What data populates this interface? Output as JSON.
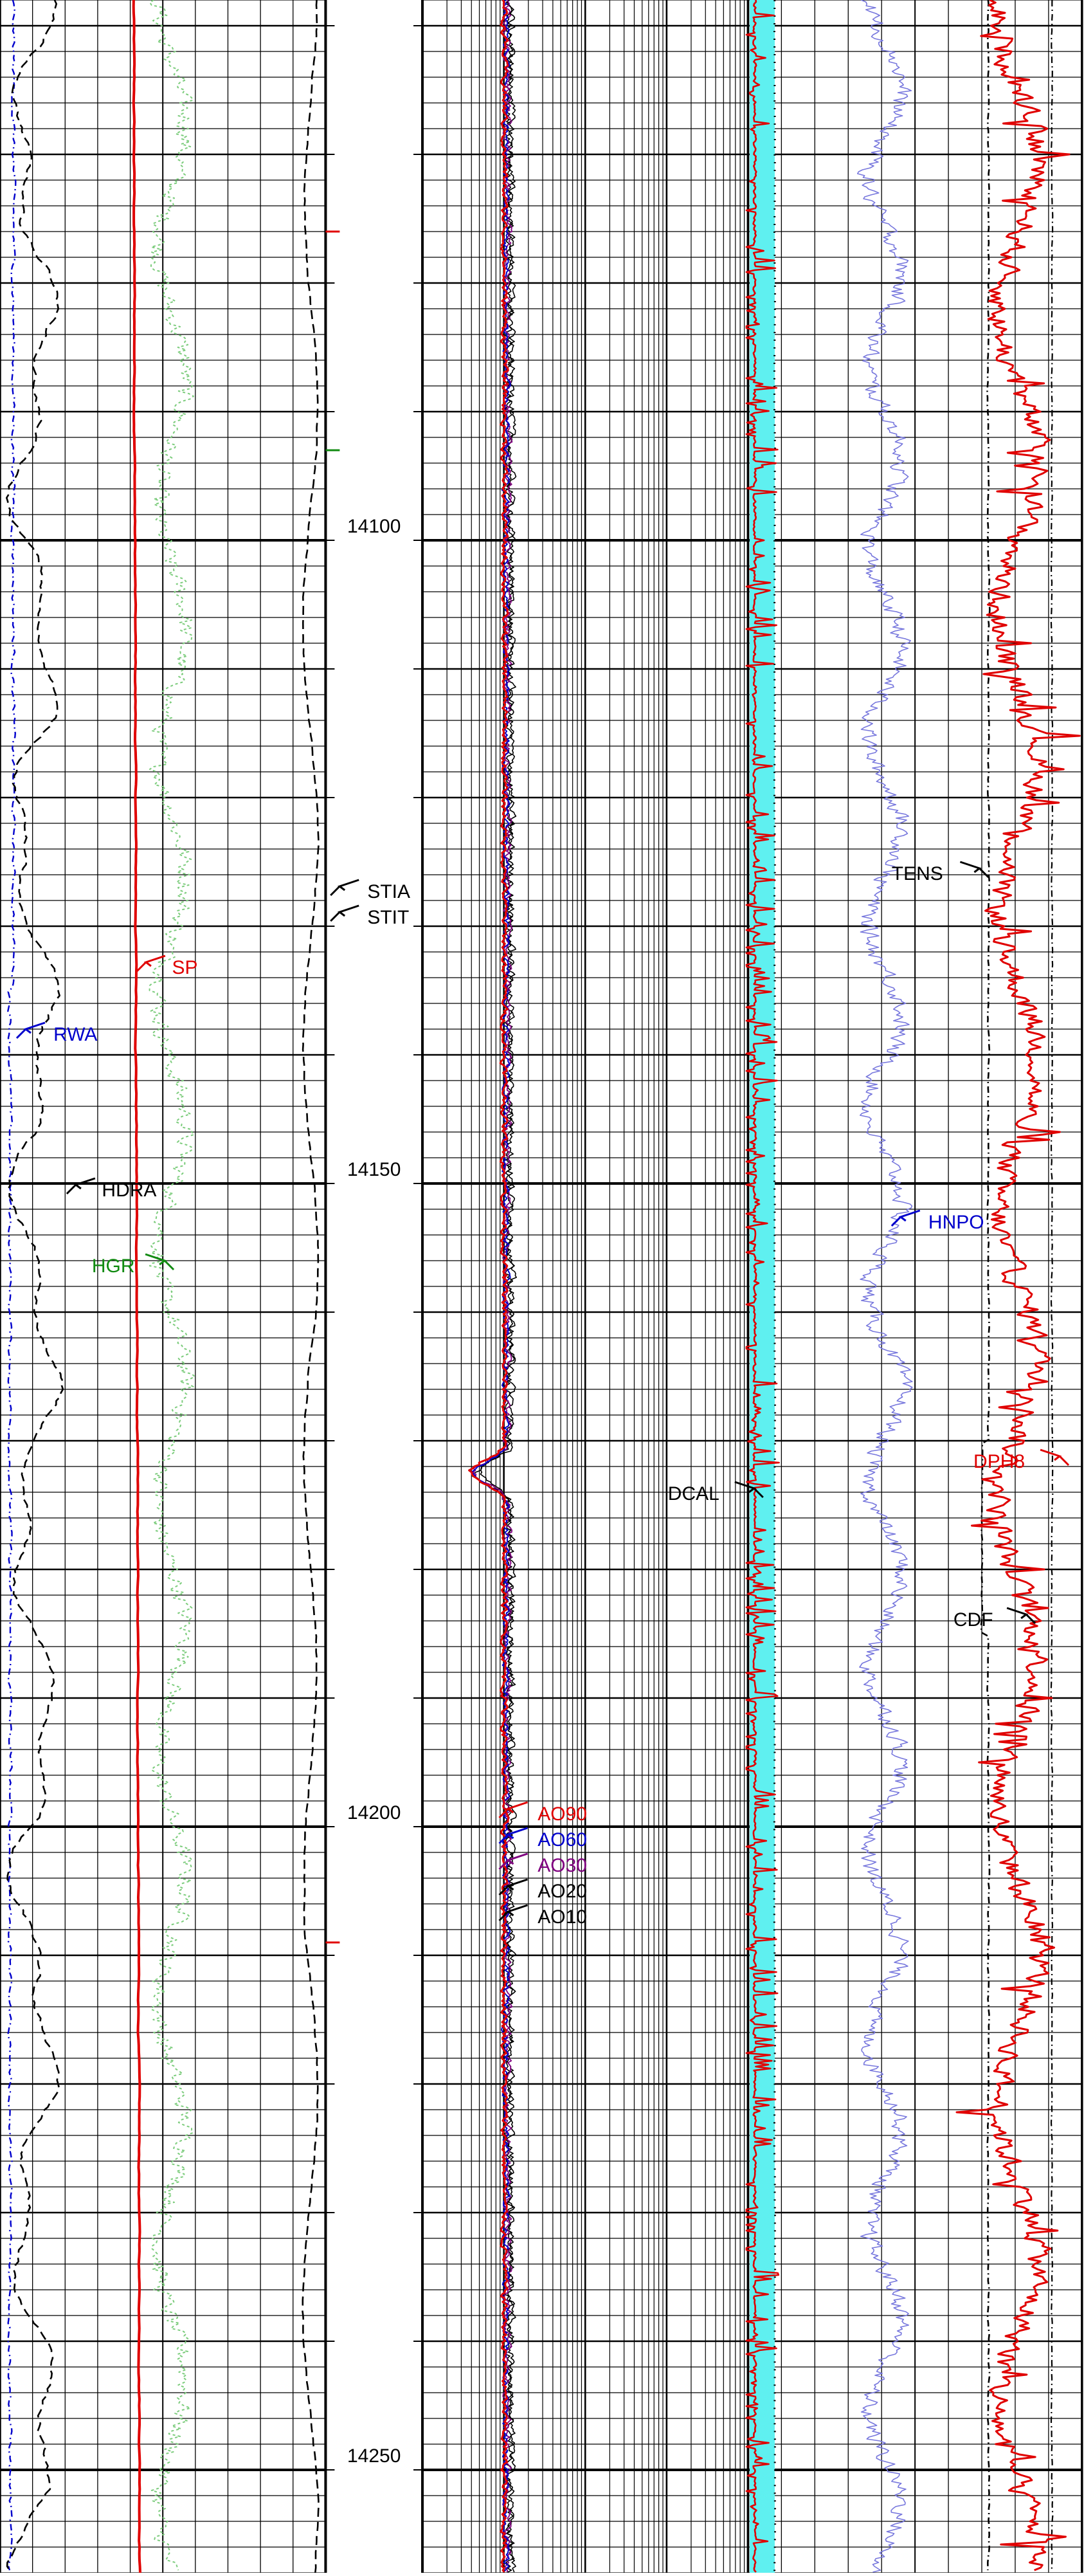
{
  "chart_data": {
    "type": "line",
    "title": "",
    "y_axis": {
      "label": "",
      "range": [
        14058,
        14258
      ],
      "ticks": [
        14100,
        14150,
        14200,
        14250
      ],
      "direction": "down"
    },
    "colors": {
      "grid": "#000000",
      "red": "#e00000",
      "blue": "#0000cc",
      "green": "#118a11",
      "purple": "#800080",
      "cyan": "#5ff0f0",
      "lightblue": "#7777dd",
      "lightgreen": "#7ccc7c",
      "black": "#000000"
    },
    "tracks": [
      {
        "name": "track-1",
        "grid": "linear"
      },
      {
        "name": "depth-track",
        "grid": "none"
      },
      {
        "name": "track-2",
        "grid": "log"
      },
      {
        "name": "track-3",
        "grid": "linear"
      }
    ],
    "curve_labels": [
      {
        "text": "STIA",
        "depth": 14127.3,
        "color": "black"
      },
      {
        "text": "STIT",
        "depth": 14129.3,
        "color": "black"
      },
      {
        "text": "SP",
        "depth": 14133.2,
        "color": "red"
      },
      {
        "text": "RWA",
        "depth": 14138.4,
        "color": "blue"
      },
      {
        "text": "HDRA",
        "depth": 14150.5,
        "color": "black"
      },
      {
        "text": "HGR",
        "depth": 14156.4,
        "color": "green"
      },
      {
        "text": "TENS",
        "depth": 14125.9,
        "color": "black"
      },
      {
        "text": "HNPO",
        "depth": 14153.0,
        "color": "blue"
      },
      {
        "text": "DPH8",
        "depth": 14171.6,
        "color": "red"
      },
      {
        "text": "DCAL",
        "depth": 14174.1,
        "color": "black"
      },
      {
        "text": "CDF",
        "depth": 14183.9,
        "color": "black"
      },
      {
        "text": "AO90",
        "depth": 14199.0,
        "color": "red"
      },
      {
        "text": "AO60",
        "depth": 14201.0,
        "color": "blue"
      },
      {
        "text": "AO30",
        "depth": 14203.0,
        "color": "purple"
      },
      {
        "text": "AO20",
        "depth": 14205.0,
        "color": "black"
      },
      {
        "text": "AO10",
        "depth": 14207.0,
        "color": "black"
      }
    ]
  }
}
